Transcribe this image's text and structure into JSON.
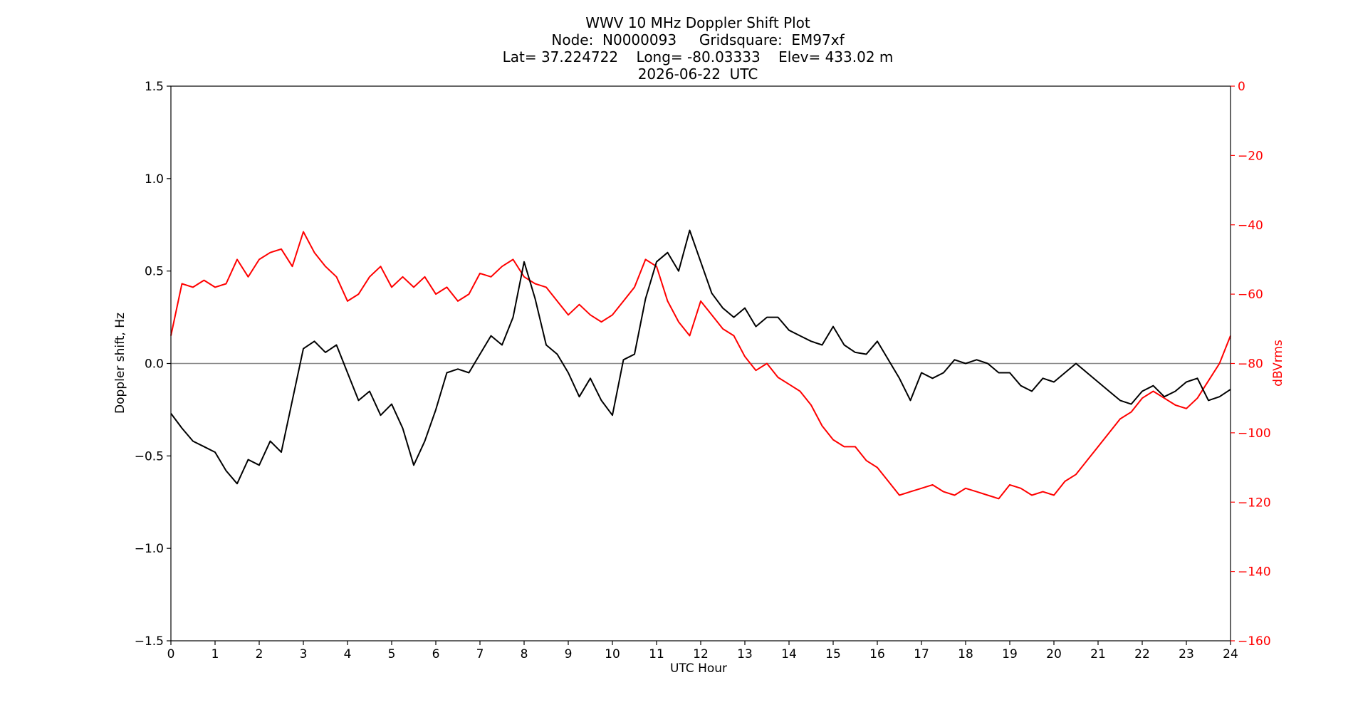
{
  "chart_data": {
    "type": "line",
    "title": [
      "WWV 10 MHz Doppler Shift Plot",
      "Node:  N0000093     Gridsquare:  EM97xf",
      "Lat= 37.224722    Long= -80.03333    Elev= 433.02 m",
      "2026-06-22  UTC"
    ],
    "xlabel": "UTC Hour",
    "ylabel_left": "Doppler shift, Hz",
    "ylabel_right": "dBVrms",
    "xlim": [
      0,
      24
    ],
    "ylim_left": [
      -1.5,
      1.5
    ],
    "ylim_right": [
      -160,
      0
    ],
    "x_ticks": [
      "0",
      "1",
      "2",
      "3",
      "4",
      "5",
      "6",
      "7",
      "8",
      "9",
      "10",
      "11",
      "12",
      "13",
      "14",
      "15",
      "16",
      "17",
      "18",
      "19",
      "20",
      "21",
      "22",
      "23",
      "24"
    ],
    "y_left_ticks": [
      "1.5",
      "1.0",
      "0.5",
      "0.0",
      "−0.5",
      "−1.0",
      "−1.5"
    ],
    "y_right_ticks": [
      "0",
      "−20",
      "−40",
      "−60",
      "−80",
      "−100",
      "−120",
      "−140",
      "−160"
    ],
    "zero_line": true,
    "colors": {
      "doppler": "#000000",
      "power": "#ff0000",
      "zero": "#888888"
    },
    "series": [
      {
        "axis": "left",
        "x": [
          0,
          0.25,
          0.5,
          0.75,
          1,
          1.25,
          1.5,
          1.75,
          2,
          2.25,
          2.5,
          2.75,
          3,
          3.25,
          3.5,
          3.75,
          4,
          4.25,
          4.5,
          4.75,
          5,
          5.25,
          5.5,
          5.75,
          6,
          6.25,
          6.5,
          6.75,
          7,
          7.25,
          7.5,
          7.75,
          8,
          8.25,
          8.5,
          8.75,
          9,
          9.25,
          9.5,
          9.75,
          10,
          10.25,
          10.5,
          10.75,
          11,
          11.25,
          11.5,
          11.75,
          12,
          12.25,
          12.5,
          12.75,
          13,
          13.25,
          13.5,
          13.75,
          14,
          14.25,
          14.5,
          14.75,
          15,
          15.25,
          15.5,
          15.75,
          16,
          16.25,
          16.5,
          16.75,
          17,
          17.25,
          17.5,
          17.75,
          18,
          18.25,
          18.5,
          18.75,
          19,
          19.25,
          19.5,
          19.75,
          20,
          20.25,
          20.5,
          20.75,
          21,
          21.25,
          21.5,
          21.75,
          22,
          22.25,
          22.5,
          22.75,
          23,
          23.25,
          23.5,
          23.75,
          24
        ],
        "values": [
          -0.27,
          -0.35,
          -0.42,
          -0.45,
          -0.48,
          -0.58,
          -0.65,
          -0.52,
          -0.55,
          -0.42,
          -0.48,
          -0.2,
          0.08,
          0.12,
          0.06,
          0.1,
          -0.05,
          -0.2,
          -0.15,
          -0.28,
          -0.22,
          -0.35,
          -0.55,
          -0.42,
          -0.25,
          -0.05,
          -0.03,
          -0.05,
          0.05,
          0.15,
          0.1,
          0.25,
          0.55,
          0.35,
          0.1,
          0.05,
          -0.05,
          -0.18,
          -0.08,
          -0.2,
          -0.28,
          0.02,
          0.05,
          0.35,
          0.55,
          0.6,
          0.5,
          0.72,
          0.55,
          0.38,
          0.3,
          0.25,
          0.3,
          0.2,
          0.25,
          0.25,
          0.18,
          0.15,
          0.12,
          0.1,
          0.2,
          0.1,
          0.06,
          0.05,
          0.12,
          0.02,
          -0.08,
          -0.2,
          -0.05,
          -0.08,
          -0.05,
          0.02,
          0.0,
          0.02,
          0.0,
          -0.05,
          -0.05,
          -0.12,
          -0.15,
          -0.08,
          -0.1,
          -0.05,
          0.0,
          -0.05,
          -0.1,
          -0.15,
          -0.2,
          -0.22,
          -0.15,
          -0.12,
          -0.18,
          -0.15,
          -0.1,
          -0.08,
          -0.2,
          -0.18,
          -0.14
        ]
      },
      {
        "axis": "right",
        "x": [
          0,
          0.25,
          0.5,
          0.75,
          1,
          1.25,
          1.5,
          1.75,
          2,
          2.25,
          2.5,
          2.75,
          3,
          3.25,
          3.5,
          3.75,
          4,
          4.25,
          4.5,
          4.75,
          5,
          5.25,
          5.5,
          5.75,
          6,
          6.25,
          6.5,
          6.75,
          7,
          7.25,
          7.5,
          7.75,
          8,
          8.25,
          8.5,
          8.75,
          9,
          9.25,
          9.5,
          9.75,
          10,
          10.25,
          10.5,
          10.75,
          11,
          11.25,
          11.5,
          11.75,
          12,
          12.25,
          12.5,
          12.75,
          13,
          13.25,
          13.5,
          13.75,
          14,
          14.25,
          14.5,
          14.75,
          15,
          15.25,
          15.5,
          15.75,
          16,
          16.25,
          16.5,
          16.75,
          17,
          17.25,
          17.5,
          17.75,
          18,
          18.25,
          18.5,
          18.75,
          19,
          19.25,
          19.5,
          19.75,
          20,
          20.25,
          20.5,
          20.75,
          21,
          21.25,
          21.5,
          21.75,
          22,
          22.25,
          22.5,
          22.75,
          23,
          23.25,
          23.5,
          23.75,
          24
        ],
        "values": [
          -72,
          -57,
          -58,
          -56,
          -58,
          -57,
          -50,
          -55,
          -50,
          -48,
          -47,
          -52,
          -42,
          -48,
          -52,
          -55,
          -62,
          -60,
          -55,
          -52,
          -58,
          -55,
          -58,
          -55,
          -60,
          -58,
          -62,
          -60,
          -54,
          -55,
          -52,
          -50,
          -55,
          -57,
          -58,
          -62,
          -66,
          -63,
          -66,
          -68,
          -66,
          -62,
          -58,
          -50,
          -52,
          -62,
          -68,
          -72,
          -62,
          -66,
          -70,
          -72,
          -78,
          -82,
          -80,
          -84,
          -86,
          -88,
          -92,
          -98,
          -102,
          -104,
          -104,
          -108,
          -110,
          -114,
          -118,
          -117,
          -116,
          -115,
          -117,
          -118,
          -116,
          -117,
          -118,
          -119,
          -115,
          -116,
          -118,
          -117,
          -118,
          -114,
          -112,
          -108,
          -104,
          -100,
          -96,
          -94,
          -90,
          -88,
          -90,
          -92,
          -93,
          -90,
          -85,
          -80,
          -72
        ]
      }
    ]
  }
}
